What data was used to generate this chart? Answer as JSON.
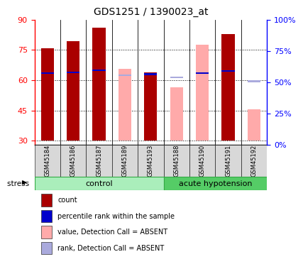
{
  "title": "GDS1251 / 1390023_at",
  "samples": [
    "GSM45184",
    "GSM45186",
    "GSM45187",
    "GSM45189",
    "GSM45193",
    "GSM45188",
    "GSM45190",
    "GSM45191",
    "GSM45192"
  ],
  "n_control": 5,
  "n_acute": 4,
  "red_values": [
    76.0,
    79.5,
    86.0,
    null,
    64.0,
    null,
    null,
    83.0,
    null
  ],
  "pink_values": [
    null,
    null,
    null,
    65.5,
    null,
    56.5,
    77.5,
    null,
    45.5
  ],
  "blue_rank": [
    63.5,
    64.0,
    65.0,
    null,
    63.0,
    null,
    63.5,
    64.5,
    null
  ],
  "light_blue_rank": [
    null,
    null,
    null,
    62.5,
    null,
    61.5,
    null,
    null,
    59.5
  ],
  "ylim_left": [
    28,
    90
  ],
  "ylim_right": [
    0,
    100
  ],
  "yticks_left": [
    30,
    45,
    60,
    75,
    90
  ],
  "yticks_right": [
    0,
    25,
    50,
    75,
    100
  ],
  "ytick_labels_right": [
    "0%",
    "25%",
    "50%",
    "75%",
    "100%"
  ],
  "bar_width": 0.5,
  "color_red": "#AA0000",
  "color_pink": "#FFAAAA",
  "color_blue": "#0000CC",
  "color_light_blue": "#AAAADD",
  "color_gray_bg": "#D8D8D8",
  "color_ctrl_light": "#AAEEBB",
  "color_ctrl_dark": "#55CC66",
  "color_acute_dark": "#44BB55",
  "legend_labels": [
    "count",
    "percentile rank within the sample",
    "value, Detection Call = ABSENT",
    "rank, Detection Call = ABSENT"
  ],
  "legend_colors": [
    "#AA0000",
    "#0000CC",
    "#FFAAAA",
    "#AAAADD"
  ],
  "base_value": 30
}
